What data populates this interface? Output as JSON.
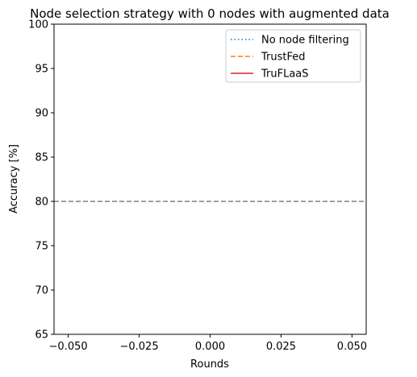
{
  "chart_data": {
    "type": "line",
    "title": "Node selection strategy with 0 nodes with augmented data",
    "xlabel": "Rounds",
    "ylabel": "Accuracy [%]",
    "xlim": [
      -0.055,
      0.055
    ],
    "ylim": [
      65,
      100
    ],
    "x_ticks": [
      -0.05,
      -0.025,
      0.0,
      0.025,
      0.05
    ],
    "x_tick_labels": [
      "−0.050",
      "−0.025",
      "0.000",
      "0.025",
      "0.050"
    ],
    "y_ticks": [
      65,
      70,
      75,
      80,
      85,
      90,
      95,
      100
    ],
    "y_tick_labels": [
      "65",
      "70",
      "75",
      "80",
      "85",
      "90",
      "95",
      "100"
    ],
    "grid": false,
    "legend_position": "top-right",
    "series": [
      {
        "name": "No node filtering",
        "x": [],
        "y": [],
        "color": "#1f77b4",
        "linestyle": "dotted"
      },
      {
        "name": "TrustFed",
        "x": [],
        "y": [],
        "color": "#ff7f0e",
        "linestyle": "dashed"
      },
      {
        "name": "TruFLaaS",
        "x": [],
        "y": [],
        "color": "#d62728",
        "linestyle": "solid"
      }
    ],
    "reference_lines": [
      {
        "orientation": "horizontal",
        "y": 80,
        "color": "#808080",
        "linestyle": "dashed"
      }
    ]
  }
}
